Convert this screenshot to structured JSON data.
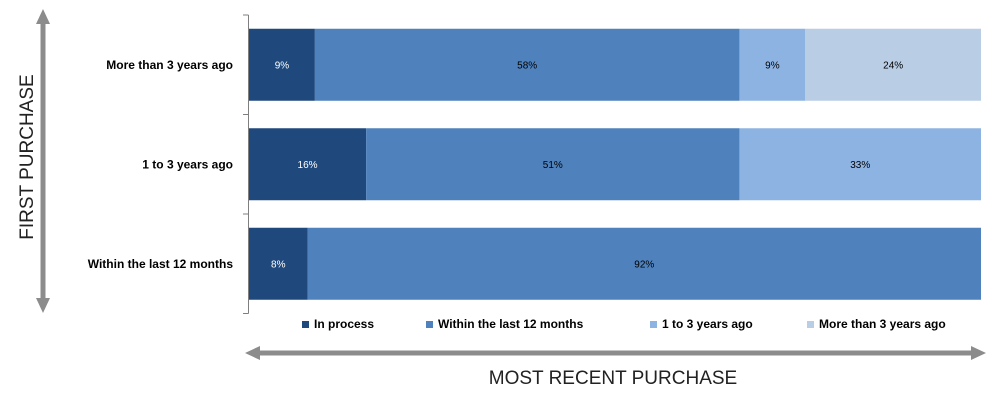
{
  "chart_data": {
    "type": "bar",
    "orientation": "horizontal",
    "stacked": true,
    "percent_stacked": true,
    "categories": [
      "More than 3 years ago",
      "1 to 3 years ago",
      "Within the last 12 months"
    ],
    "series": [
      {
        "name": "In process",
        "color": "#1f497d",
        "label_color": "#ffffff",
        "values": [
          9,
          16,
          8
        ],
        "labels": [
          "9%",
          "16%",
          "8%"
        ]
      },
      {
        "name": "Within the last 12 months",
        "color": "#4f81bd",
        "label_color": "#000000",
        "values": [
          58,
          51,
          92
        ],
        "labels": [
          "58%",
          "51%",
          "92%"
        ]
      },
      {
        "name": "1 to 3 years ago",
        "color": "#8db3e2",
        "label_color": "#000000",
        "values": [
          9,
          33,
          0
        ],
        "labels": [
          "9%",
          "33%",
          ""
        ]
      },
      {
        "name": "More than 3 years ago",
        "color": "#b9cde5",
        "label_color": "#000000",
        "values": [
          24,
          0,
          0
        ],
        "labels": [
          "24%",
          "",
          ""
        ]
      }
    ],
    "xlim": [
      0,
      100
    ],
    "xlabel": "MOST RECENT PURCHASE",
    "ylabel": "FIRST PURCHASE",
    "legend_position": "bottom",
    "grid": false,
    "arrow_color": "#8c8c8c",
    "axis_line_color": "#7f7f7f"
  }
}
